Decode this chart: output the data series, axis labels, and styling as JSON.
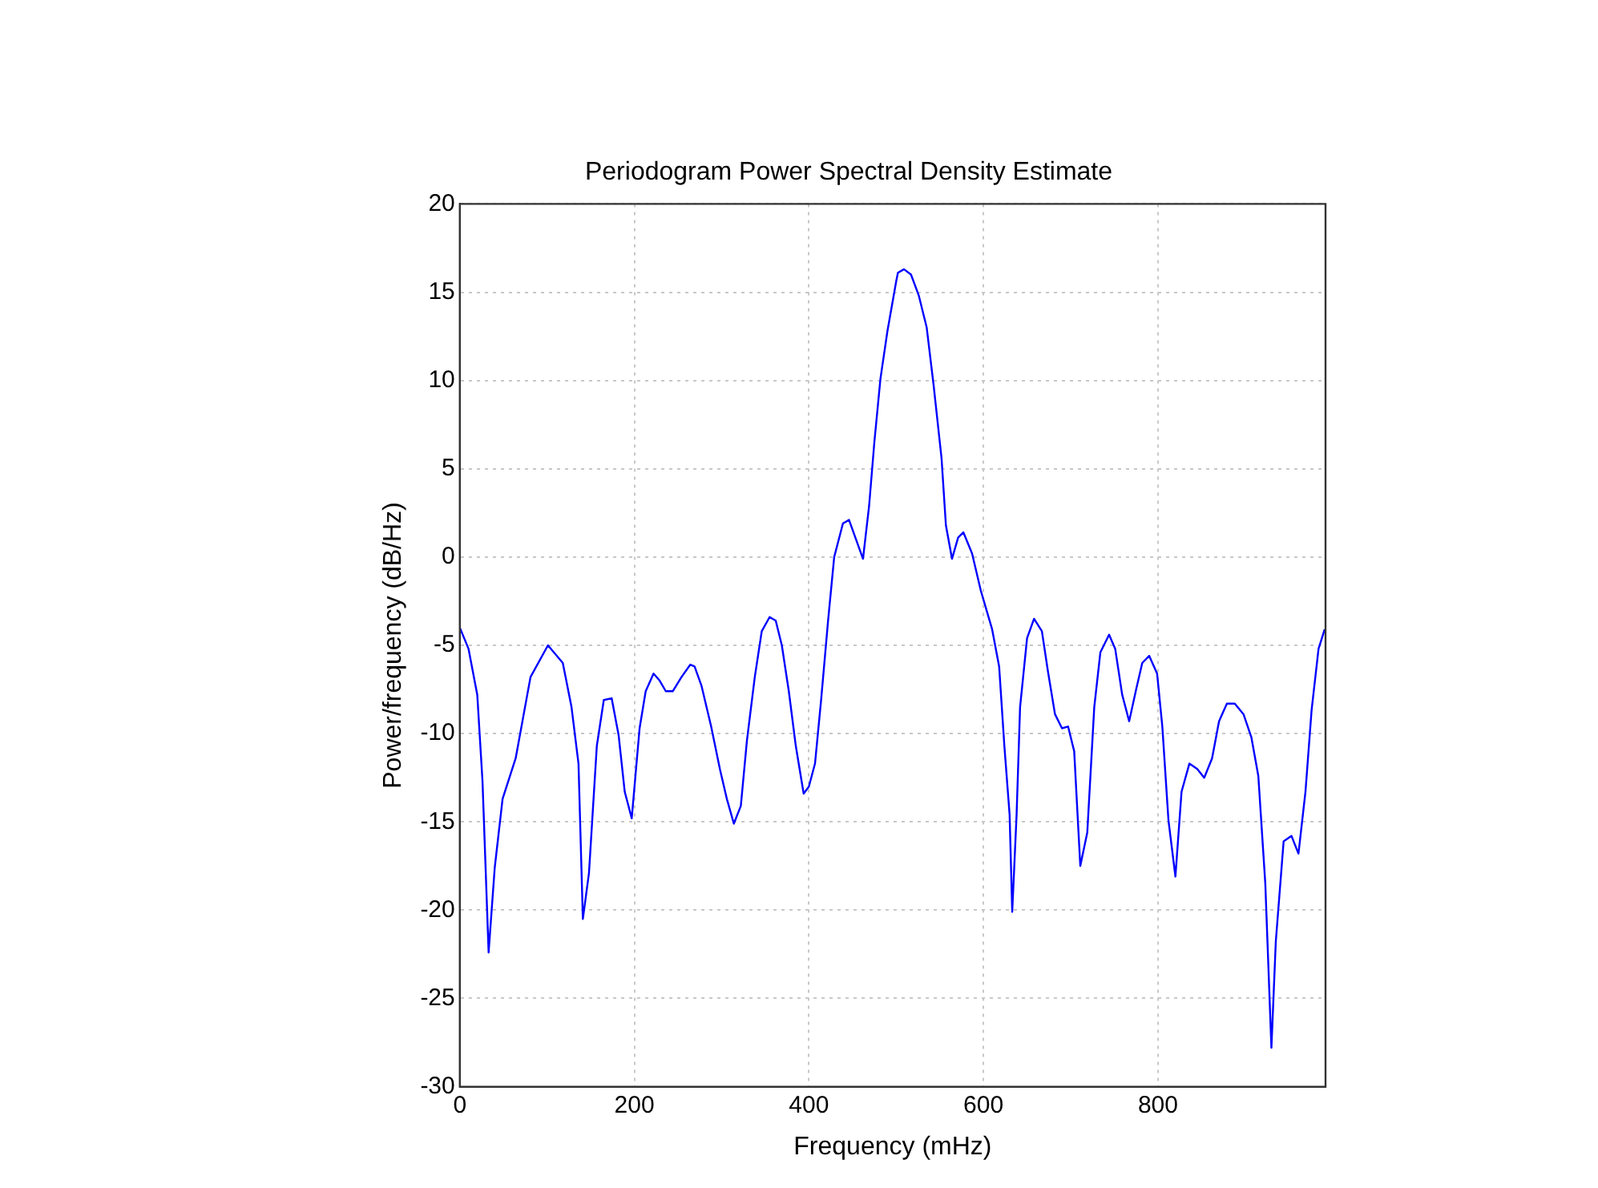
{
  "chart_data": {
    "type": "line",
    "title": "Periodogram Power Spectral Density Estimate",
    "xlabel": "Frequency (mHz)",
    "ylabel": "Power/frequency (dB/Hz)",
    "xlim": [
      0,
      992
    ],
    "xticks": [
      0,
      200,
      400,
      600,
      800
    ],
    "ylim": [
      -30,
      20
    ],
    "yticks": [
      -30,
      -25,
      -20,
      -15,
      -10,
      -5,
      0,
      5,
      10,
      15,
      20
    ],
    "grid": true,
    "legend": false,
    "marker": "none",
    "line_style": "solid",
    "series": [
      {
        "color": "#0000ff",
        "x": [
          0,
          10,
          20,
          26,
          33,
          40,
          49,
          64,
          81,
          101,
          118,
          128,
          136,
          141,
          148,
          157,
          165,
          174,
          182,
          189,
          197,
          206,
          213,
          222,
          229,
          236,
          244,
          254,
          264,
          269,
          277,
          288,
          298,
          306,
          314,
          322,
          329,
          338,
          346,
          355,
          362,
          369,
          377,
          385,
          394,
          400,
          407,
          414,
          422,
          429,
          439,
          446,
          454,
          462,
          469,
          475,
          482,
          490,
          500,
          502,
          509,
          517,
          526,
          535,
          543,
          552,
          557,
          564,
          571,
          577,
          587,
          597,
          610,
          618,
          624,
          630,
          633,
          638,
          642,
          650,
          658,
          667,
          674,
          682,
          690,
          697,
          704,
          711,
          719,
          727,
          734,
          744,
          751,
          759,
          767,
          775,
          782,
          790,
          799,
          805,
          812,
          820,
          827,
          836,
          845,
          853,
          862,
          870,
          879,
          888,
          898,
          907,
          915,
          923,
          930,
          935,
          944,
          953,
          961,
          969,
          976,
          984,
          991
        ],
        "values": [
          -4.0,
          -5.2,
          -7.8,
          -12.7,
          -22.4,
          -17.6,
          -13.7,
          -11.4,
          -6.8,
          -5.0,
          -6.0,
          -8.5,
          -11.7,
          -20.5,
          -17.9,
          -10.7,
          -8.1,
          -8.0,
          -10.1,
          -13.3,
          -14.8,
          -9.7,
          -7.6,
          -6.6,
          -7.0,
          -7.6,
          -7.6,
          -6.8,
          -6.1,
          -6.2,
          -7.3,
          -9.6,
          -12.0,
          -13.7,
          -15.1,
          -14.1,
          -10.4,
          -6.8,
          -4.2,
          -3.4,
          -3.6,
          -5.0,
          -7.6,
          -10.7,
          -13.4,
          -13.0,
          -11.7,
          -8.1,
          -3.6,
          0,
          1.9,
          2.1,
          1.0,
          -0.1,
          2.9,
          6.5,
          10.1,
          12.8,
          15.6,
          16.1,
          16.3,
          16.0,
          14.8,
          13.0,
          9.7,
          5.6,
          1.8,
          -0.1,
          1.1,
          1.4,
          0.2,
          -1.9,
          -4.1,
          -6.2,
          -10.7,
          -14.6,
          -20.1,
          -14.6,
          -8.5,
          -4.6,
          -3.5,
          -4.2,
          -6.5,
          -8.9,
          -9.7,
          -9.6,
          -11.0,
          -17.5,
          -15.6,
          -8.5,
          -5.4,
          -4.4,
          -5.2,
          -7.8,
          -9.3,
          -7.5,
          -6.0,
          -5.6,
          -6.6,
          -9.6,
          -14.9,
          -18.1,
          -13.3,
          -11.7,
          -12.0,
          -12.5,
          -11.4,
          -9.3,
          -8.3,
          -8.3,
          -8.9,
          -10.2,
          -12.4,
          -18.5,
          -27.8,
          -21.8,
          -16.1,
          -15.8,
          -16.8,
          -13.3,
          -8.7,
          -5.2,
          -4.1
        ]
      }
    ]
  }
}
